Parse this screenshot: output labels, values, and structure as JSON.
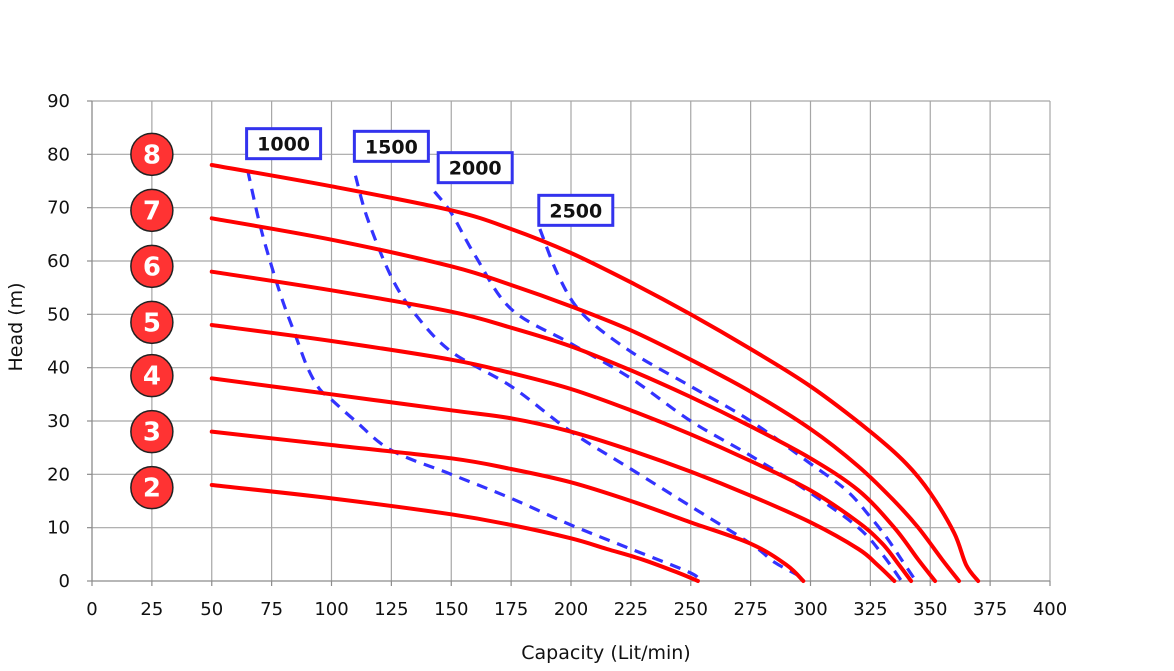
{
  "chart_data": {
    "type": "line",
    "title": "",
    "xlabel": "Capacity (Lit/min)",
    "ylabel": "Head (m)",
    "xlim": [
      0,
      400
    ],
    "ylim": [
      0,
      90
    ],
    "xticks": [
      0,
      25,
      50,
      75,
      100,
      125,
      150,
      175,
      200,
      225,
      250,
      275,
      300,
      325,
      350,
      375,
      400
    ],
    "yticks": [
      0,
      10,
      20,
      30,
      40,
      50,
      60,
      70,
      80,
      90
    ],
    "grid": true,
    "series": [
      {
        "name": "8",
        "kind": "pump-curve",
        "color": "#ff0000",
        "x": [
          50,
          100,
          150,
          175,
          200,
          225,
          250,
          275,
          300,
          325,
          340,
          350,
          360,
          365,
          370
        ],
        "y": [
          78,
          74,
          69.5,
          66,
          61.5,
          56,
          50,
          43.5,
          36.5,
          28,
          22,
          16.5,
          9,
          3,
          0
        ]
      },
      {
        "name": "7",
        "kind": "pump-curve",
        "color": "#ff0000",
        "x": [
          50,
          100,
          150,
          175,
          200,
          225,
          250,
          275,
          300,
          320,
          335,
          345,
          355,
          362
        ],
        "y": [
          68,
          64,
          59,
          55.5,
          51.5,
          47,
          41.5,
          35.5,
          28.5,
          21.5,
          15,
          10,
          4,
          0
        ]
      },
      {
        "name": "6",
        "kind": "pump-curve",
        "color": "#ff0000",
        "x": [
          50,
          100,
          150,
          175,
          200,
          225,
          250,
          275,
          300,
          320,
          335,
          345,
          352
        ],
        "y": [
          58,
          54.5,
          50.5,
          47.5,
          44,
          39.5,
          34.5,
          29,
          23,
          17,
          10,
          4,
          0
        ]
      },
      {
        "name": "5",
        "kind": "pump-curve",
        "color": "#ff0000",
        "x": [
          50,
          100,
          150,
          175,
          200,
          225,
          250,
          275,
          300,
          320,
          330,
          337,
          342
        ],
        "y": [
          48,
          45,
          41.5,
          39,
          36,
          32,
          27.5,
          22.5,
          17,
          11,
          7,
          3,
          0
        ]
      },
      {
        "name": "4",
        "kind": "pump-curve",
        "color": "#ff0000",
        "x": [
          50,
          100,
          150,
          175,
          200,
          225,
          250,
          275,
          300,
          320,
          328,
          335
        ],
        "y": [
          38,
          35,
          32,
          30.5,
          28,
          24.5,
          20.5,
          16,
          11,
          6,
          3,
          0
        ]
      },
      {
        "name": "3",
        "kind": "pump-curve",
        "color": "#ff0000",
        "x": [
          50,
          100,
          150,
          175,
          200,
          225,
          250,
          275,
          290,
          297
        ],
        "y": [
          28,
          25.5,
          23,
          21,
          18.5,
          15,
          11,
          7,
          3,
          0
        ]
      },
      {
        "name": "2",
        "kind": "pump-curve",
        "color": "#ff0000",
        "x": [
          50,
          100,
          150,
          175,
          200,
          215,
          230,
          245,
          253
        ],
        "y": [
          18,
          15.5,
          12.5,
          10.5,
          8,
          6,
          4,
          1.5,
          0
        ]
      },
      {
        "name": "1000",
        "kind": "rpm-line",
        "color": "#3333ff",
        "x": [
          65,
          70,
          75,
          80,
          85,
          90,
          95,
          100,
          110,
          125,
          150,
          175,
          200,
          225,
          250,
          253
        ],
        "y": [
          77,
          67,
          59,
          52,
          46,
          40,
          36,
          34,
          30,
          24.5,
          20,
          15.5,
          10.5,
          6,
          1.5,
          0
        ]
      },
      {
        "name": "1500",
        "kind": "rpm-line",
        "color": "#3333ff",
        "x": [
          110,
          115,
          125,
          135,
          150,
          175,
          200,
          225,
          250,
          275,
          285,
          295,
          297
        ],
        "y": [
          76,
          68,
          57,
          50,
          43,
          36.5,
          28,
          21,
          14,
          7,
          3.5,
          1,
          0
        ]
      },
      {
        "name": "2000",
        "kind": "rpm-line",
        "color": "#3333ff",
        "x": [
          143,
          150,
          160,
          175,
          200,
          225,
          250,
          275,
          300,
          320,
          330,
          338
        ],
        "y": [
          73,
          69,
          61,
          51,
          44.5,
          38,
          30,
          23.5,
          16.5,
          10,
          5,
          0
        ]
      },
      {
        "name": "2500",
        "kind": "rpm-line",
        "color": "#3333ff",
        "x": [
          187,
          195,
          205,
          225,
          250,
          275,
          300,
          315,
          325,
          332,
          338,
          344
        ],
        "y": [
          66,
          57,
          50,
          43,
          36.5,
          30,
          22,
          17,
          12,
          8,
          4,
          0
        ]
      }
    ],
    "stage_labels": [
      {
        "text": "8",
        "y": 80
      },
      {
        "text": "7",
        "y": 69.5
      },
      {
        "text": "6",
        "y": 59
      },
      {
        "text": "5",
        "y": 48.5
      },
      {
        "text": "4",
        "y": 38.5
      },
      {
        "text": "3",
        "y": 28
      },
      {
        "text": "2",
        "y": 17.5
      }
    ],
    "rpm_labels": [
      {
        "text": "1000",
        "x": 80,
        "y": 82
      },
      {
        "text": "1500",
        "x": 125,
        "y": 81.5
      },
      {
        "text": "2000",
        "x": 160,
        "y": 77.5
      },
      {
        "text": "2500",
        "x": 202,
        "y": 69.5
      }
    ],
    "colors": {
      "pump_curve": "#ff0000",
      "rpm_line": "#3333ff",
      "stage_circle_fill": "#ff3333",
      "stage_circle_stroke": "#222222",
      "grid": "#a6a6a6",
      "axis": "#8c8c8c",
      "label_box_stroke": "#3333ee"
    }
  }
}
